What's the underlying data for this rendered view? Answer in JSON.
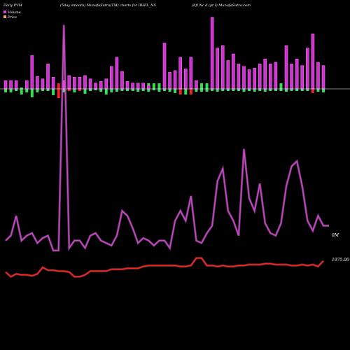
{
  "header": {
    "left": "Daily PVM",
    "middle": "(5day smooth) MunafaSutra(TM) charts for IIHFL_NS",
    "right": "(Iifl Nc d (pt I) MunafaSutra.com"
  },
  "legend": {
    "volume_label": "Volume",
    "price_label": "Price",
    "volume_color": "#e040e0",
    "price_color": "#f4a460"
  },
  "colors": {
    "background": "#000000",
    "volume_bar": "#cc33cc",
    "volume_bar_edge": "#ff66ff",
    "up_bar": "#33dd55",
    "down_bar": "#ee2222",
    "volume_line": "#cc44cc",
    "price_line": "#ff2020",
    "baseline": "#ffffff"
  },
  "chart_data": {
    "type": "bar+line",
    "x_count": 61,
    "volume_bars": [
      10,
      10,
      10,
      0,
      10,
      40,
      15,
      12,
      30,
      14,
      0,
      10,
      16,
      14,
      14,
      16,
      12,
      7,
      9,
      12,
      27,
      38,
      21,
      9,
      7,
      7,
      7,
      4,
      0,
      0,
      55,
      20,
      22,
      38,
      24,
      38,
      10,
      0,
      0,
      86,
      49,
      52,
      34,
      42,
      30,
      27,
      23,
      25,
      30,
      36,
      30,
      32,
      0,
      52,
      30,
      36,
      28,
      49,
      66,
      32,
      28
    ],
    "flow_bars": [
      -5,
      -5,
      -3,
      -8,
      -5,
      -12,
      -5,
      -3,
      -3,
      -9,
      -13,
      -5,
      -3,
      -5,
      -3,
      -7,
      -3,
      -2,
      -4,
      -8,
      -5,
      -4,
      -3,
      -3,
      -3,
      -4,
      -3,
      -4,
      -2,
      -4,
      -3,
      -4,
      -6,
      -8,
      -8,
      -8,
      -4,
      -4,
      -4,
      -3,
      -4,
      -3,
      -3,
      -3,
      -3,
      -4,
      -3,
      -4,
      -3,
      -4,
      -3,
      -3,
      -3,
      -4,
      -3,
      -3,
      -3,
      -3,
      -6,
      -4,
      -5
    ],
    "flow_sign": [
      1,
      1,
      1,
      0,
      1,
      0,
      1,
      1,
      1,
      0,
      -1,
      1,
      -1,
      1,
      -1,
      0,
      1,
      1,
      1,
      0,
      1,
      1,
      1,
      1,
      1,
      1,
      1,
      1,
      1,
      1,
      1,
      1,
      0,
      -1,
      1,
      -1,
      1,
      1,
      1,
      1,
      1,
      1,
      1,
      1,
      1,
      1,
      1,
      1,
      1,
      1,
      1,
      1,
      1,
      1,
      1,
      1,
      1,
      1,
      -1,
      0,
      1
    ],
    "volume_line": [
      8,
      10,
      18,
      8,
      10,
      11,
      7,
      9,
      10,
      4,
      4,
      95,
      5,
      8,
      8,
      5,
      10,
      11,
      8,
      7,
      6,
      10,
      20,
      18,
      13,
      7,
      9,
      8,
      6,
      8,
      8,
      5,
      16,
      20,
      16,
      26,
      8,
      7,
      11,
      14,
      32,
      37,
      20,
      16,
      10,
      45,
      25,
      20,
      31,
      15,
      11,
      10,
      15,
      30,
      38,
      40,
      30,
      16,
      12,
      18,
      14
    ],
    "volume_line_overrides": {
      "index": [
        12
      ],
      "values": [
        4
      ]
    },
    "price_line": [
      1960,
      1955,
      1958,
      1957,
      1957,
      1956,
      1958,
      1965,
      1962,
      1962,
      1961,
      1961,
      1960,
      1955,
      1955,
      1957,
      1961,
      1961,
      1961,
      1961,
      1963,
      1963,
      1963,
      1964,
      1964,
      1964,
      1966,
      1967,
      1967,
      1967,
      1967,
      1967,
      1967,
      1966,
      1966,
      1967,
      1975,
      1975,
      1967,
      1967,
      1966,
      1967,
      1966,
      1966,
      1967,
      1967,
      1968,
      1968,
      1968,
      1969,
      1969,
      1968,
      1968,
      1968,
      1967,
      1967,
      1968,
      1967,
      1968,
      1966,
      1972
    ],
    "labels": {
      "volume_end": "0M",
      "price_end": "1975.00"
    }
  }
}
